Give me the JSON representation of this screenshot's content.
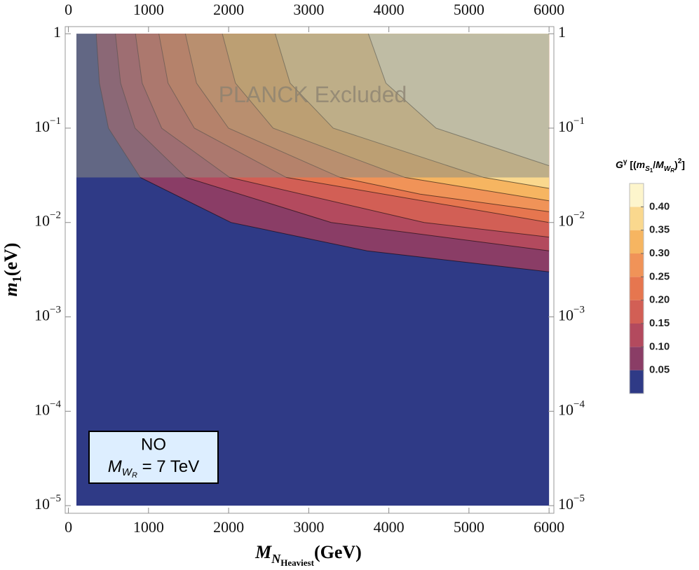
{
  "chart_data": {
    "type": "contour",
    "x_label": [
      "M",
      "N",
      "Heaviest",
      "(GeV)"
    ],
    "y_label": [
      "m",
      "1",
      "(eV)"
    ],
    "xlim": [
      -40,
      6060
    ],
    "ylim": [
      8.3e-06,
      1.19
    ],
    "ylog": true,
    "xticks": [
      0,
      1000,
      2000,
      3000,
      4000,
      5000,
      6000
    ],
    "yticks": [
      1,
      {
        "value": 0.1,
        "label": "10",
        "exponent": "−1"
      },
      {
        "value": 0.01,
        "label": "10",
        "exponent": "−2"
      },
      {
        "value": 0.001,
        "label": "10",
        "exponent": "−3"
      },
      {
        "value": 0.0001,
        "label": "10",
        "exponent": "−4"
      },
      {
        "value": 1e-05,
        "label": "10",
        "exponent": "−5"
      }
    ],
    "x_domain": [
      100,
      6000
    ],
    "y_domain": [
      1e-05,
      1
    ],
    "levels": [
      0.05,
      0.1,
      0.15,
      0.2,
      0.25,
      0.3,
      0.35,
      0.4
    ],
    "colors": [
      "#2f3a86",
      "#8a3d66",
      "#b34a5e",
      "#d25f55",
      "#e6764f",
      "#f09358",
      "#f6b561",
      "#fad88e",
      "#fdf5cc"
    ],
    "contours": [
      {
        "x": [
          347,
          387,
          500,
          897,
          2030,
          3730,
          6000
        ],
        "y": [
          1,
          0.3,
          0.1,
          0.03,
          0.01,
          0.005,
          0.003
        ]
      },
      {
        "x": [
          587,
          651,
          832,
          1467,
          3280,
          6000
        ],
        "y": [
          1,
          0.3,
          0.1,
          0.03,
          0.01,
          0.005
        ]
      },
      {
        "x": [
          837,
          921,
          1164,
          2013,
          4440,
          6000
        ],
        "y": [
          1,
          0.3,
          0.1,
          0.03,
          0.01,
          0.007
        ]
      },
      {
        "x": [
          1129,
          1244,
          1572,
          2720,
          6000
        ],
        "y": [
          1,
          0.3,
          0.1,
          0.03,
          0.01
        ]
      },
      {
        "x": [
          1460,
          1599,
          1998,
          3393,
          4390,
          6000
        ],
        "y": [
          1,
          0.3,
          0.1,
          0.03,
          0.02,
          0.013
        ]
      },
      {
        "x": [
          1921,
          2085,
          2555,
          4200,
          6000
        ],
        "y": [
          1,
          0.3,
          0.1,
          0.03,
          0.017
        ]
      },
      {
        "x": [
          2581,
          2768,
          3305,
          5183,
          6000
        ],
        "y": [
          1,
          0.3,
          0.1,
          0.03,
          0.023
        ]
      },
      {
        "x": [
          3744,
          3963,
          4590,
          6000
        ],
        "y": [
          1,
          0.3,
          0.1,
          0.04
        ]
      }
    ],
    "planck_limit": 0.03,
    "planck_label": "PLANCK Excluded",
    "box_text": [
      "NO",
      "M",
      "W",
      "R",
      " = 7 TeV"
    ],
    "colorbar_title": [
      "G",
      "γ",
      " [(",
      "m",
      "S",
      "1",
      "/",
      "M",
      "W",
      "R",
      ")",
      "2",
      "]"
    ],
    "colorbar_lim": [
      0,
      0.45
    ],
    "colorbar_ticks": [
      0.05,
      {
        "value": 0.1,
        "label": "0.10"
      },
      0.15,
      {
        "value": 0.2,
        "label": "0.20"
      },
      0.25,
      {
        "value": 0.3,
        "label": "0.30"
      },
      0.35,
      {
        "value": 0.4,
        "label": "0.40"
      }
    ]
  }
}
